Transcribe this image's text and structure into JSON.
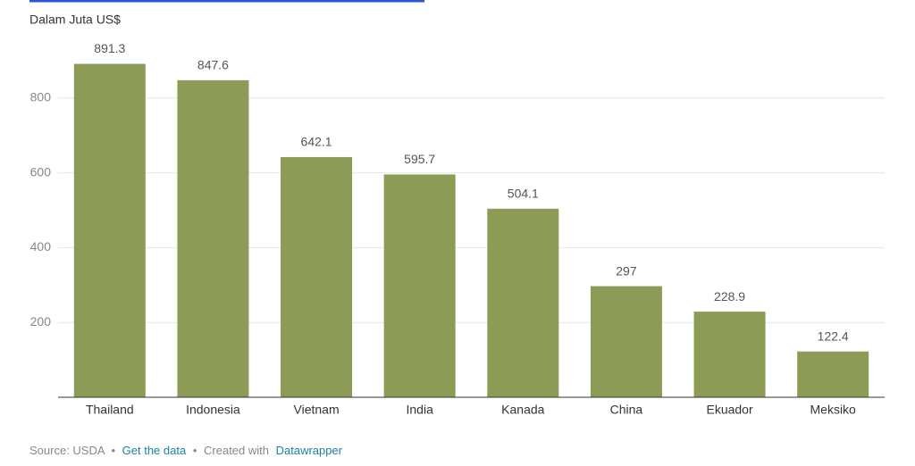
{
  "chart_data": {
    "type": "bar",
    "subtitle": "Dalam Juta US$",
    "categories": [
      "Thailand",
      "Indonesia",
      "Vietnam",
      "India",
      "Kanada",
      "China",
      "Ekuador",
      "Meksiko"
    ],
    "values": [
      891.3,
      847.6,
      642.1,
      595.7,
      504.1,
      297,
      228.9,
      122.4
    ],
    "color": "#8c9c56",
    "ylim": [
      0,
      1000
    ],
    "yticks": [
      200,
      400,
      600,
      800
    ],
    "grid": true
  },
  "footer": {
    "source": "Source: USDA",
    "separator": "•",
    "get_data": "Get the data",
    "created": "Created with",
    "tool": "Datawrapper"
  }
}
